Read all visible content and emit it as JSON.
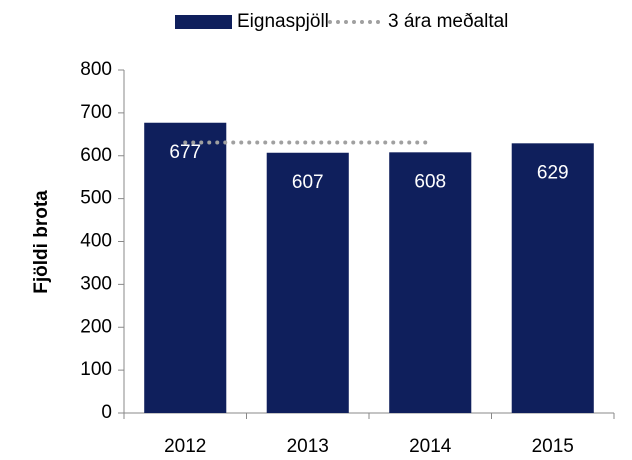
{
  "chart_data": {
    "type": "bar",
    "y_label": "Fjöldi brota",
    "categories": [
      "2012",
      "2013",
      "2014",
      "2015"
    ],
    "series": [
      {
        "name": "Eignaspjöll",
        "type": "bar",
        "color": "#0f1f5c",
        "values": [
          677,
          607,
          608,
          629
        ]
      },
      {
        "name": "3 ára meðaltal",
        "type": "line",
        "color": "#a0a0a0",
        "values": [
          631,
          631,
          631,
          null
        ]
      }
    ],
    "ylim": [
      0,
      800
    ],
    "yticks": [
      0,
      100,
      200,
      300,
      400,
      500,
      600,
      700,
      800
    ],
    "grid": false,
    "legend": "top"
  }
}
